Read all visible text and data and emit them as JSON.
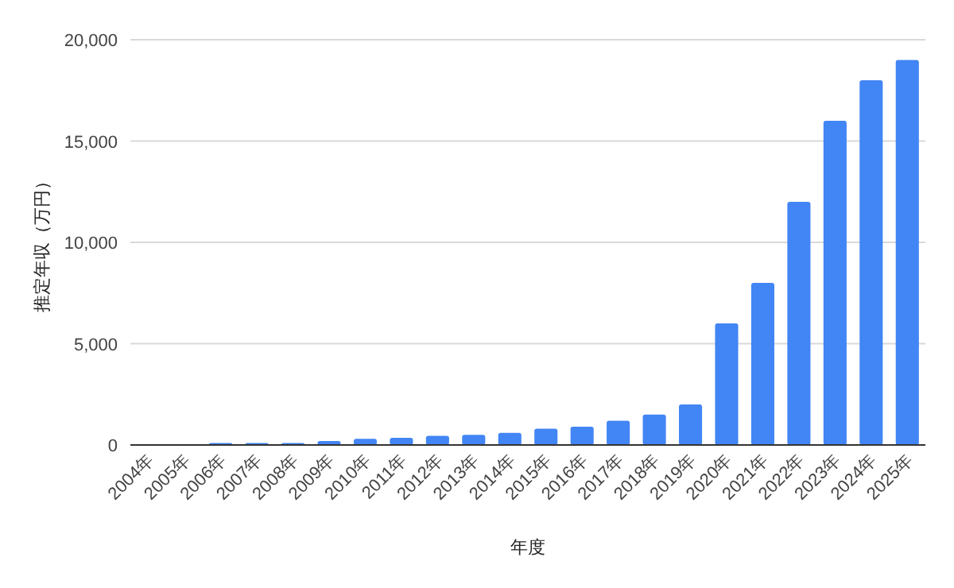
{
  "chart_data": {
    "type": "bar",
    "xlabel": "年度",
    "ylabel": "推定年収（万円）",
    "categories": [
      "2004年",
      "2005年",
      "2006年",
      "2007年",
      "2008年",
      "2009年",
      "2010年",
      "2011年",
      "2012年",
      "2013年",
      "2014年",
      "2015年",
      "2016年",
      "2017年",
      "2018年",
      "2019年",
      "2020年",
      "2021年",
      "2022年",
      "2023年",
      "2024年",
      "2025年"
    ],
    "values": [
      0,
      0,
      100,
      100,
      100,
      200,
      300,
      350,
      450,
      500,
      600,
      800,
      900,
      1200,
      1500,
      2000,
      6000,
      8000,
      12000,
      16000,
      18000,
      19000
    ],
    "color": "#4285f4",
    "ylim": [
      0,
      20000
    ],
    "yticks": [
      {
        "value": 0,
        "label": "0"
      },
      {
        "value": 5000,
        "label": "5,000"
      },
      {
        "value": 10000,
        "label": "10,000"
      },
      {
        "value": 15000,
        "label": "15,000"
      },
      {
        "value": 20000,
        "label": "20,000"
      }
    ],
    "grid": "y"
  }
}
